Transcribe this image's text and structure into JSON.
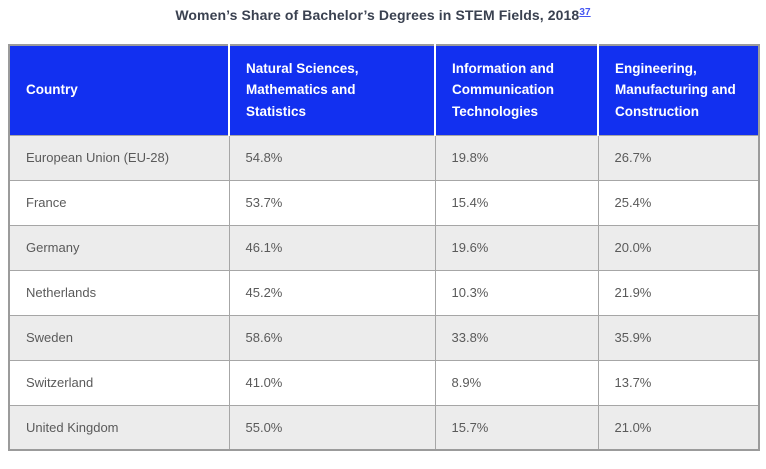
{
  "chart_data": {
    "type": "table",
    "title": "Women’s Share of Bachelor’s Degrees in STEM Fields, 2018",
    "footnote_reference": "37",
    "columns": [
      "Country",
      "Natural Sciences, Mathematics and Statistics",
      "Information and Communication Technologies",
      "Engineering, Manufacturing and Construction"
    ],
    "rows": [
      [
        "European Union (EU-28)",
        "54.8%",
        "19.8%",
        "26.7%"
      ],
      [
        "France",
        "53.7%",
        "15.4%",
        "25.4%"
      ],
      [
        "Germany",
        "46.1%",
        "19.6%",
        "20.0%"
      ],
      [
        "Netherlands",
        "45.2%",
        "10.3%",
        "21.9%"
      ],
      [
        "Sweden",
        "58.6%",
        "33.8%",
        "35.9%"
      ],
      [
        "Switzerland",
        "41.0%",
        "8.9%",
        "13.7%"
      ],
      [
        "United Kingdom",
        "55.0%",
        "15.7%",
        "21.0%"
      ]
    ],
    "values_numeric": {
      "unit": "percent",
      "series": [
        {
          "name": "Natural Sciences, Mathematics and Statistics",
          "values": [
            54.8,
            53.7,
            46.1,
            45.2,
            58.6,
            41.0,
            55.0
          ]
        },
        {
          "name": "Information and Communication Technologies",
          "values": [
            19.8,
            15.4,
            19.6,
            10.3,
            33.8,
            8.9,
            15.7
          ]
        },
        {
          "name": "Engineering, Manufacturing and Construction",
          "values": [
            26.7,
            25.4,
            20.0,
            21.9,
            35.9,
            13.7,
            21.0
          ]
        }
      ],
      "categories": [
        "European Union (EU-28)",
        "France",
        "Germany",
        "Netherlands",
        "Sweden",
        "Switzerland",
        "United Kingdom"
      ]
    }
  },
  "colors": {
    "header_bg": "#1230f0",
    "header_text": "#ffffff",
    "row_bg": "#ffffff",
    "alt_row_bg": "#ececec",
    "border": "#a6a6a6",
    "outer_border": "#9b9b9b",
    "title_text": "#3a4150",
    "body_text": "#5a5a5a",
    "link": "#4556f2"
  }
}
